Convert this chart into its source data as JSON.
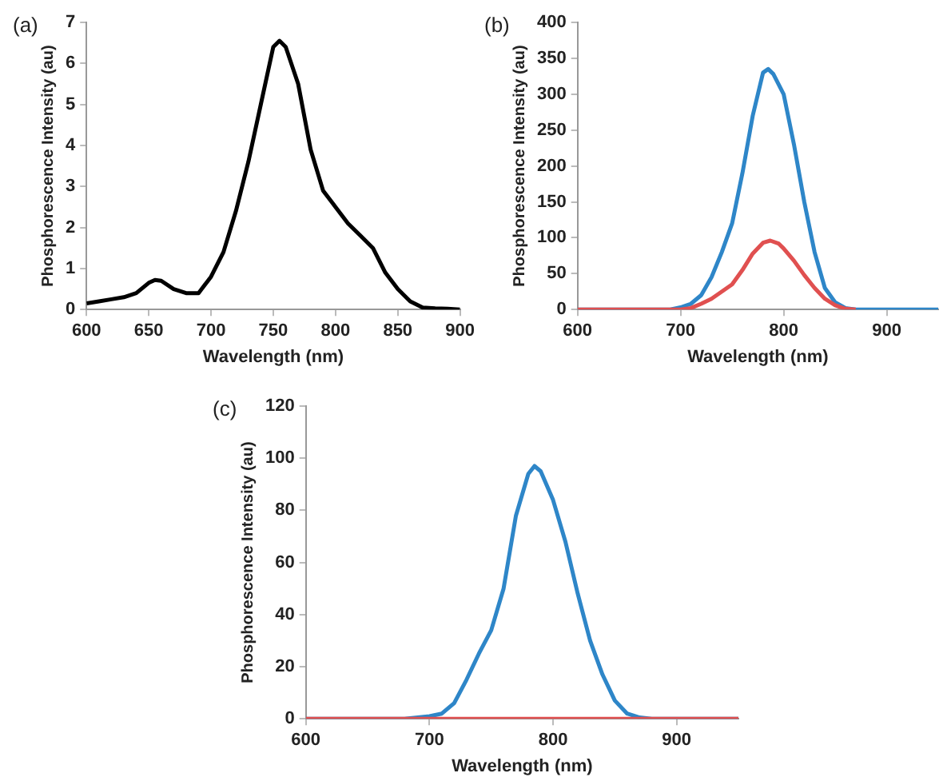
{
  "chart_data": [
    {
      "type": "line",
      "title": "(a)",
      "xlabel": "Wavelength (nm)",
      "ylabel": "Phosphorescence Intensity (au)",
      "xlim": [
        600,
        900
      ],
      "xticks": [
        600,
        650,
        700,
        750,
        800,
        850,
        900
      ],
      "ylim": [
        0,
        7
      ],
      "yticks": [
        0,
        1,
        2,
        3,
        4,
        5,
        6,
        7
      ],
      "grid": false,
      "legend": false,
      "marker": "none",
      "series": [
        {
          "color": "#000000",
          "x": [
            600,
            610,
            620,
            630,
            640,
            650,
            655,
            660,
            670,
            680,
            690,
            700,
            710,
            720,
            730,
            740,
            750,
            755,
            760,
            770,
            780,
            790,
            800,
            810,
            820,
            830,
            840,
            850,
            860,
            870,
            880,
            890,
            900
          ],
          "values": [
            0.15,
            0.2,
            0.25,
            0.3,
            0.4,
            0.65,
            0.72,
            0.7,
            0.5,
            0.4,
            0.4,
            0.8,
            1.4,
            2.4,
            3.6,
            5.0,
            6.4,
            6.55,
            6.4,
            5.5,
            3.9,
            2.9,
            2.5,
            2.1,
            1.8,
            1.5,
            0.9,
            0.5,
            0.2,
            0.05,
            0.03,
            0.02,
            0
          ]
        }
      ]
    },
    {
      "type": "line",
      "title": "(b)",
      "xlabel": "Wavelength (nm)",
      "ylabel": "Phosphorescence Intensity (au)",
      "xlim": [
        600,
        950
      ],
      "xticks": [
        600,
        700,
        800,
        900
      ],
      "ylim": [
        0,
        400
      ],
      "yticks": [
        0,
        50,
        100,
        150,
        200,
        250,
        300,
        350,
        400
      ],
      "grid": false,
      "legend": false,
      "marker": "none",
      "series": [
        {
          "color": "#2e86c8",
          "x": [
            600,
            690,
            700,
            710,
            720,
            730,
            740,
            750,
            760,
            770,
            780,
            785,
            790,
            800,
            810,
            820,
            830,
            840,
            850,
            860,
            870,
            950
          ],
          "values": [
            0,
            0,
            3,
            8,
            20,
            45,
            80,
            120,
            190,
            270,
            330,
            335,
            328,
            300,
            230,
            150,
            80,
            30,
            10,
            2,
            0,
            0
          ]
        },
        {
          "color": "#e05050",
          "x": [
            600,
            700,
            710,
            720,
            730,
            740,
            750,
            760,
            770,
            780,
            787,
            795,
            800,
            810,
            820,
            830,
            840,
            850,
            860,
            870
          ],
          "values": [
            0,
            0,
            2,
            8,
            15,
            25,
            35,
            55,
            78,
            93,
            96,
            92,
            85,
            68,
            48,
            30,
            15,
            6,
            1,
            0
          ]
        }
      ]
    },
    {
      "type": "line",
      "title": "(c)",
      "xlabel": "Wavelength (nm)",
      "ylabel": "Phosphorescence Intensity (au)",
      "xlim": [
        600,
        950
      ],
      "xticks": [
        600,
        700,
        800,
        900
      ],
      "ylim": [
        0,
        120
      ],
      "yticks": [
        0,
        20,
        40,
        60,
        80,
        100,
        120
      ],
      "grid": false,
      "legend": false,
      "marker": "none",
      "series": [
        {
          "color": "#2e86c8",
          "x": [
            600,
            680,
            700,
            710,
            720,
            730,
            740,
            750,
            760,
            770,
            780,
            785,
            790,
            800,
            810,
            820,
            830,
            840,
            850,
            860,
            870,
            880,
            950
          ],
          "values": [
            0,
            0,
            1,
            2,
            6,
            15,
            25,
            34,
            50,
            78,
            94,
            97,
            95,
            84,
            68,
            48,
            30,
            17,
            7,
            2,
            0.5,
            0,
            0
          ]
        },
        {
          "color": "#e05050",
          "x": [
            600,
            950
          ],
          "values": [
            0,
            0
          ]
        }
      ]
    }
  ]
}
